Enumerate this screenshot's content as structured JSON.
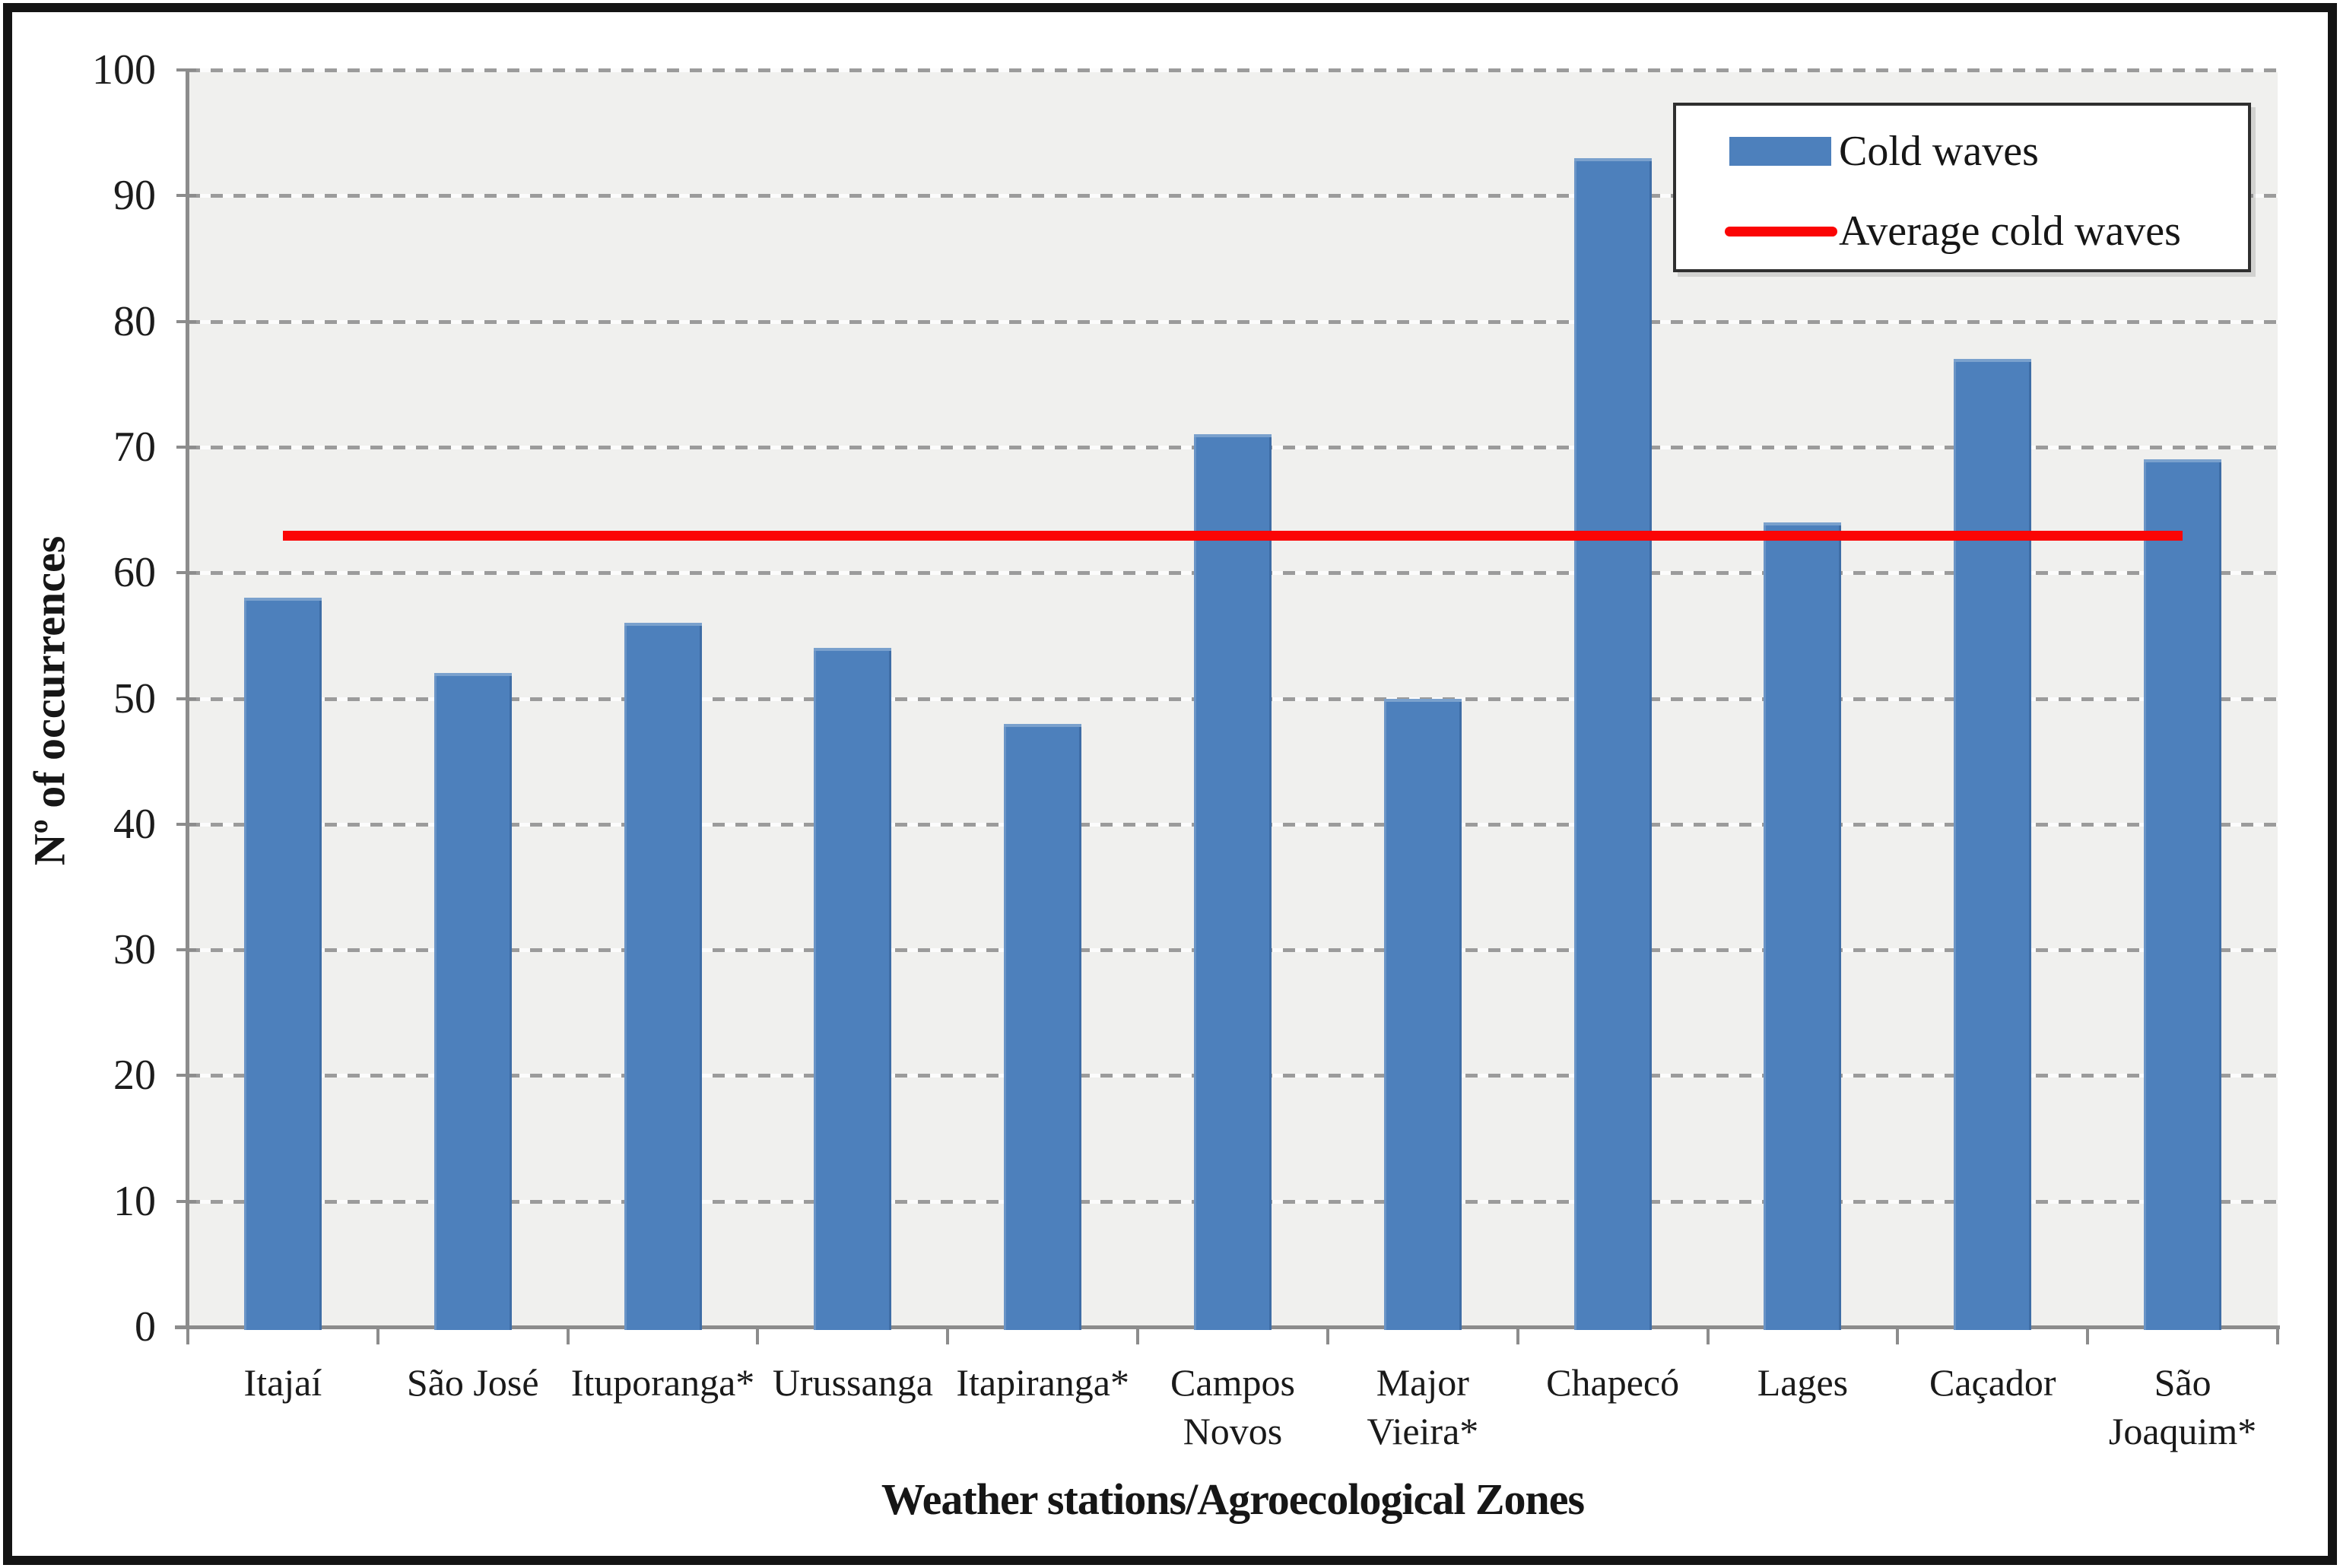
{
  "chart_data": {
    "type": "bar",
    "categories": [
      "Itajaí",
      "São José",
      "Ituporanga*",
      "Urussanga",
      "Itapiranga*",
      "Campos Novos",
      "Major Vieira*",
      "Chapecó",
      "Lages",
      "Caçador",
      "São Joaquim*"
    ],
    "series": [
      {
        "name": "Cold waves",
        "type": "bar",
        "color": "#4d80bc",
        "values": [
          58,
          52,
          56,
          54,
          48,
          71,
          50,
          93,
          64,
          77,
          69
        ]
      },
      {
        "name": "Average cold waves",
        "type": "line",
        "color": "#fb0505",
        "value": 63
      }
    ],
    "title": "",
    "xlabel": "Weather stations/Agroecological Zones",
    "ylabel": "Nº of occurrences",
    "ylim": [
      0,
      100
    ],
    "yticks": [
      0,
      10,
      20,
      30,
      40,
      50,
      60,
      70,
      80,
      90,
      100
    ],
    "grid": "dashed-horizontal",
    "plot_bg": "#f0f0ee",
    "grid_color": "#9b9b9b",
    "legend_position": "top-right"
  },
  "legend": {
    "items": [
      {
        "label": "Cold waves",
        "swatch": "bar",
        "color": "#4d80bc"
      },
      {
        "label": "Average cold waves",
        "swatch": "line",
        "color": "#fb0505"
      }
    ]
  }
}
